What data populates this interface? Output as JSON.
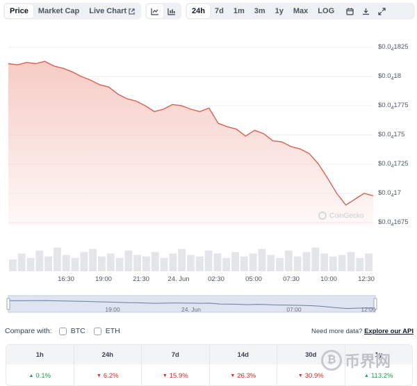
{
  "toolbar": {
    "view_tabs": [
      {
        "label": "Price",
        "active": true
      },
      {
        "label": "Market Cap",
        "active": false
      },
      {
        "label": "Live Chart",
        "active": false
      }
    ],
    "chart_type_icons": [
      "line-chart-icon",
      "candlestick-icon"
    ],
    "ranges": [
      {
        "label": "24h",
        "active": true
      },
      {
        "label": "7d",
        "active": false
      },
      {
        "label": "1m",
        "active": false
      },
      {
        "label": "3m",
        "active": false
      },
      {
        "label": "1y",
        "active": false
      },
      {
        "label": "Max",
        "active": false
      },
      {
        "label": "LOG",
        "active": false
      }
    ],
    "action_icons": [
      "calendar-icon",
      "download-icon",
      "fullscreen-icon"
    ]
  },
  "chart_data": {
    "type": "area",
    "x_tick_labels": [
      "16:30",
      "19:00",
      "21:30",
      "24. Jun",
      "02:30",
      "05:00",
      "07:30",
      "10:00",
      "12:30"
    ],
    "y_tick_labels": [
      {
        "prefix": "$0.0",
        "sub": "4",
        "rest": "1825"
      },
      {
        "prefix": "$0.0",
        "sub": "4",
        "rest": "18"
      },
      {
        "prefix": "$0.0",
        "sub": "4",
        "rest": "1775"
      },
      {
        "prefix": "$0.0",
        "sub": "4",
        "rest": "175"
      },
      {
        "prefix": "$0.0",
        "sub": "4",
        "rest": "1725"
      },
      {
        "prefix": "$0.0",
        "sub": "4",
        "rest": "17"
      },
      {
        "prefix": "$0.0",
        "sub": "4",
        "rest": "1675"
      }
    ],
    "ylim": [
      1.675e-05,
      1.825e-05
    ],
    "grid": true,
    "line_color": "#d9604f",
    "fill_color": "#f6c9c2",
    "series": [
      {
        "y": [
          1.811e-05,
          1.81e-05,
          1.812e-05,
          1.811e-05,
          1.813e-05,
          1.809e-05,
          1.807e-05,
          1.804e-05,
          1.8e-05,
          1.797e-05,
          1.793e-05,
          1.791e-05,
          1.785e-05,
          1.781e-05,
          1.779e-05,
          1.775e-05,
          1.77e-05,
          1.772e-05,
          1.776e-05,
          1.775e-05,
          1.772e-05,
          1.77e-05,
          1.773e-05,
          1.76e-05,
          1.757e-05,
          1.755e-05,
          1.749e-05,
          1.754e-05,
          1.751e-05,
          1.745e-05,
          1.744e-05,
          1.74e-05,
          1.738e-05,
          1.734e-05,
          1.725e-05,
          1.713e-05,
          1.7e-05,
          1.69e-05,
          1.695e-05,
          1.7e-05,
          1.698e-05
        ],
        "x_fraction_note": "evenly spaced over the 24h window"
      }
    ],
    "volume": [
      8,
      12,
      9,
      14,
      10,
      16,
      11,
      9,
      13,
      15,
      10,
      12,
      9,
      14,
      11,
      10,
      13,
      9,
      12,
      15,
      11,
      10,
      14,
      12,
      9,
      13,
      10,
      12,
      15,
      11,
      9,
      14,
      10,
      13,
      16,
      12,
      10,
      11,
      13,
      9,
      12
    ],
    "navigator_tick_labels": [
      "19:00",
      "24. Jun",
      "07:00",
      "12:00"
    ],
    "watermark": "CoinGecko"
  },
  "compare": {
    "label": "Compare with:",
    "options": [
      "BTC",
      "ETH"
    ],
    "api_text": "Need more data?",
    "api_link": "Explore our API"
  },
  "stats": {
    "headers": [
      "1h",
      "24h",
      "7d",
      "14d",
      "30d",
      "1y"
    ],
    "values": [
      {
        "text": "0.1%",
        "dir": "up"
      },
      {
        "text": "6.2%",
        "dir": "down"
      },
      {
        "text": "15.9%",
        "dir": "down"
      },
      {
        "text": "26.3%",
        "dir": "down"
      },
      {
        "text": "30.9%",
        "dir": "down"
      },
      {
        "text": "113.2%",
        "dir": "up"
      }
    ]
  },
  "site_watermark": "币界网"
}
